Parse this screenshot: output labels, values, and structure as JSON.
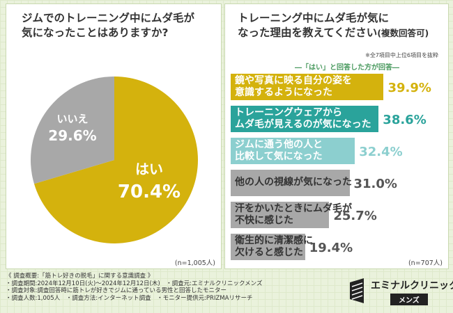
{
  "left_panel": {
    "title_line1": "ジムでのトレーニング中にムダ毛が",
    "title_line2": "気になったことはありますか?",
    "n_label": "(n=1,005人)"
  },
  "right_panel": {
    "title_line1": "トレーニング中にムダ毛が気に",
    "title_line2": "なった理由を教えてください",
    "title_suffix": "(複数回答可)",
    "note": "※全7項目中上位6項目を抜粋",
    "sub_head": "―「はい」と回答した方が回答―",
    "n_label": "(n=707人)"
  },
  "colors": {
    "yes": "#d4b20d",
    "no": "#a8a8a8",
    "bar1": "#d4b20d",
    "bar2": "#2aa39b",
    "bar3": "#8ccfcf",
    "bar4": "#a8a8a8"
  },
  "chart_data": [
    {
      "type": "pie",
      "title": "ジムでのトレーニング中にムダ毛が気になったことはありますか?",
      "labels": [
        "はい",
        "いいえ"
      ],
      "values": [
        70.4,
        29.6
      ],
      "display": [
        "70.4%",
        "29.6%"
      ]
    },
    {
      "type": "bar",
      "orientation": "horizontal",
      "title": "トレーニング中にムダ毛が気になった理由を教えてください(複数回答可)",
      "categories": [
        [
          "鏡や写真に映る自分の姿を",
          "意識するようになった"
        ],
        [
          "トレーニングウェアから",
          "ムダ毛が見えるのが気になった"
        ],
        [
          "ジムに通う他の人と",
          "比較して気になった"
        ],
        [
          "他の人の視線が気になった"
        ],
        [
          "汗をかいたときにムダ毛が",
          "不快に感じた"
        ],
        [
          "衛生的に清潔感に",
          "欠けると感じた"
        ]
      ],
      "values": [
        39.9,
        38.6,
        32.4,
        31.0,
        25.7,
        19.4
      ],
      "display": [
        "39.9%",
        "38.6%",
        "32.4%",
        "31.0%",
        "25.7%",
        "19.4%"
      ]
    }
  ],
  "footer": {
    "lines": [
      "《 調査概要:「筋トレ好きの脱毛」に関する意識調査 》",
      "・調査期間:2024年12月10日(火)～2024年12月12日(木)　・調査元:エミナルクリニックメンズ",
      "・調査対象:調査回答時に筋トレが好きでジムに通っている男性と回答したモニター",
      "・調査人数:1,005人　・調査方法:インターネット調査　・モニター提供元:PRIZMAリサーチ"
    ]
  },
  "logo": {
    "name": "エミナルクリニック",
    "sub": "メンズ"
  }
}
